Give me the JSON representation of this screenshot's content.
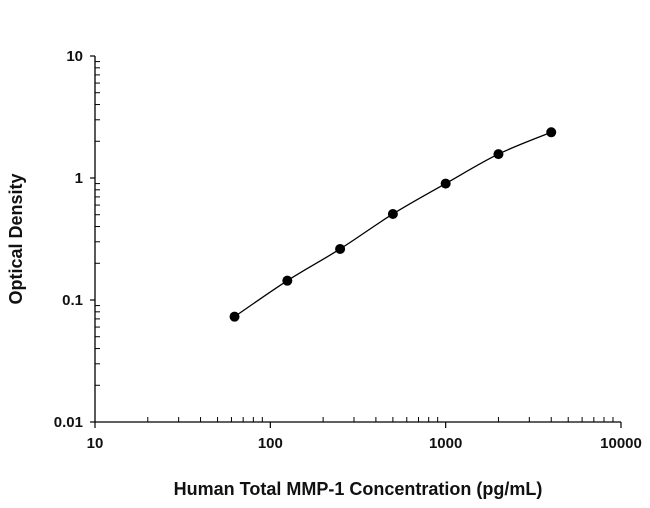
{
  "chart_data": {
    "type": "scatter",
    "title": "",
    "xlabel": "Human Total MMP-1 Concentration (pg/mL)",
    "ylabel": "Optical Density",
    "x_scale": "log",
    "y_scale": "log",
    "xlim": [
      10,
      10000
    ],
    "ylim": [
      0.01,
      10
    ],
    "x_ticks": [
      "10",
      "100",
      "1000",
      "10000"
    ],
    "y_ticks": [
      "0.01",
      "0.1",
      "1",
      "10"
    ],
    "grid": false,
    "fit_line": true,
    "marker_color": "#000000",
    "series": [
      {
        "x": [
          62.5,
          125,
          250,
          500,
          1000,
          2000,
          4000
        ],
        "y": [
          0.073,
          0.144,
          0.262,
          0.507,
          0.9,
          1.57,
          2.37
        ]
      }
    ]
  }
}
